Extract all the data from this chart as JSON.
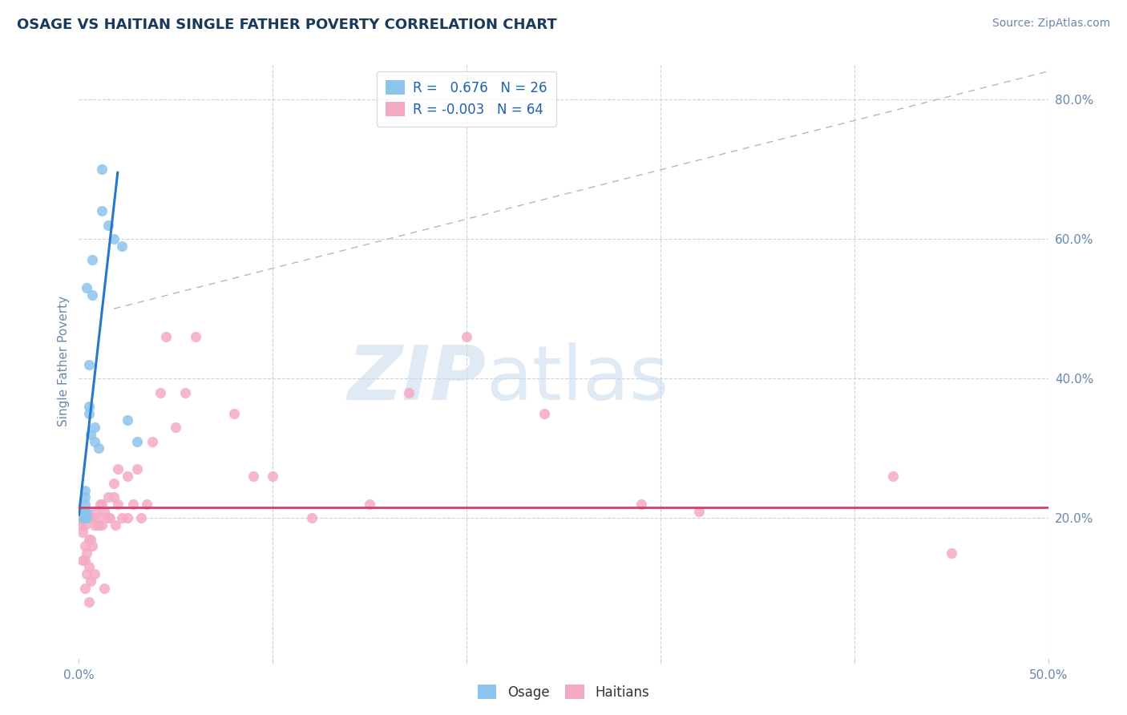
{
  "title": "OSAGE VS HAITIAN SINGLE FATHER POVERTY CORRELATION CHART",
  "source_text": "Source: ZipAtlas.com",
  "ylabel": "Single Father Poverty",
  "xlim": [
    0.0,
    0.5
  ],
  "ylim": [
    0.0,
    0.85
  ],
  "osage_R": 0.676,
  "osage_N": 26,
  "haitian_R": -0.003,
  "haitian_N": 64,
  "osage_color": "#8cc4ee",
  "haitian_color": "#f5aac4",
  "osage_line_color": "#2878c8",
  "haitian_line_color": "#d04070",
  "background_color": "#ffffff",
  "grid_color": "#c8d4e4",
  "title_color": "#1a3a5c",
  "axis_label_color": "#6888aa",
  "legend_text_color": "#2060b0",
  "watermark_color": "#ccdcee",
  "osage_x": [
    0.002,
    0.002,
    0.003,
    0.003,
    0.003,
    0.003,
    0.003,
    0.004,
    0.004,
    0.004,
    0.005,
    0.005,
    0.005,
    0.006,
    0.007,
    0.007,
    0.008,
    0.008,
    0.01,
    0.012,
    0.012,
    0.015,
    0.018,
    0.022,
    0.025,
    0.03
  ],
  "osage_y": [
    0.2,
    0.21,
    0.2,
    0.21,
    0.22,
    0.23,
    0.24,
    0.53,
    0.2,
    0.21,
    0.35,
    0.36,
    0.42,
    0.32,
    0.52,
    0.57,
    0.31,
    0.33,
    0.3,
    0.64,
    0.7,
    0.62,
    0.6,
    0.59,
    0.34,
    0.31
  ],
  "haitian_x": [
    0.001,
    0.001,
    0.001,
    0.002,
    0.002,
    0.002,
    0.003,
    0.003,
    0.003,
    0.003,
    0.004,
    0.004,
    0.004,
    0.005,
    0.005,
    0.005,
    0.006,
    0.006,
    0.006,
    0.007,
    0.007,
    0.008,
    0.008,
    0.009,
    0.01,
    0.01,
    0.011,
    0.012,
    0.012,
    0.013,
    0.013,
    0.015,
    0.015,
    0.016,
    0.018,
    0.018,
    0.019,
    0.02,
    0.02,
    0.022,
    0.025,
    0.025,
    0.028,
    0.03,
    0.032,
    0.035,
    0.038,
    0.042,
    0.045,
    0.05,
    0.055,
    0.06,
    0.08,
    0.09,
    0.1,
    0.12,
    0.15,
    0.17,
    0.2,
    0.24,
    0.29,
    0.32,
    0.42,
    0.45
  ],
  "haitian_y": [
    0.19,
    0.2,
    0.21,
    0.14,
    0.18,
    0.2,
    0.1,
    0.14,
    0.16,
    0.19,
    0.12,
    0.15,
    0.2,
    0.08,
    0.13,
    0.17,
    0.11,
    0.17,
    0.2,
    0.16,
    0.2,
    0.12,
    0.19,
    0.21,
    0.19,
    0.2,
    0.22,
    0.19,
    0.22,
    0.1,
    0.21,
    0.2,
    0.23,
    0.2,
    0.23,
    0.25,
    0.19,
    0.22,
    0.27,
    0.2,
    0.2,
    0.26,
    0.22,
    0.27,
    0.2,
    0.22,
    0.31,
    0.38,
    0.46,
    0.33,
    0.38,
    0.46,
    0.35,
    0.26,
    0.26,
    0.2,
    0.22,
    0.38,
    0.46,
    0.35,
    0.22,
    0.21,
    0.26,
    0.15
  ],
  "osage_line_x": [
    0.0,
    0.02
  ],
  "osage_line_y": [
    0.205,
    0.695
  ],
  "haitian_line_y_intercept": 0.215,
  "dash_line_x": [
    0.018,
    0.5
  ],
  "dash_line_y": [
    0.5,
    0.84
  ]
}
